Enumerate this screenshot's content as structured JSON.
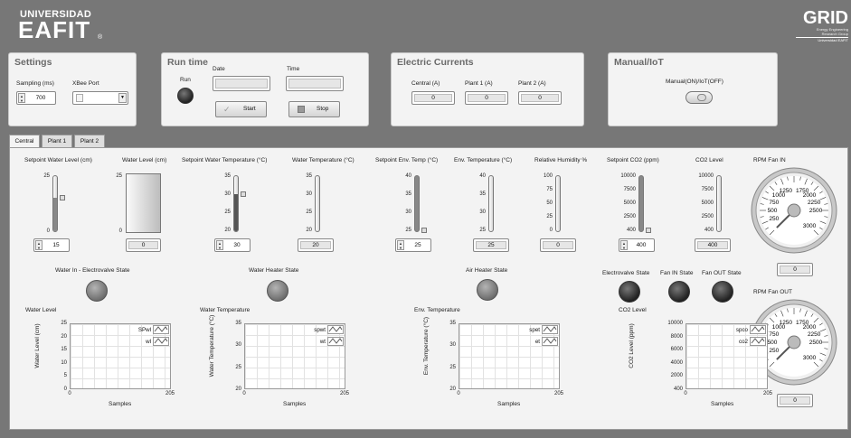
{
  "header": {
    "logo_line1": "UNIVERSIDAD",
    "logo_line2": "EAFIT",
    "logo_mark": "®",
    "grid_logo": "GRID",
    "grid_sub1": "Energy Engineering",
    "grid_sub2": "Research Group",
    "grid_sub3": "Universidad EAFIT"
  },
  "settings": {
    "title": "Settings",
    "sampling_label": "Sampling (ms)",
    "sampling_value": "700",
    "xbee_label": "XBee Port",
    "xbee_value": ""
  },
  "runtime": {
    "title": "Run time",
    "run_label": "Run",
    "date_label": "Date",
    "time_label": "Time",
    "date_value": "",
    "time_value": "",
    "start_label": "Start",
    "stop_label": "Stop"
  },
  "currents": {
    "title": "Electric Currents",
    "central_label": "Central (A)",
    "plant1_label": "Plant 1 (A)",
    "plant2_label": "Plant 2 (A)",
    "central_value": "0",
    "plant1_value": "0",
    "plant2_value": "0"
  },
  "manual": {
    "title": "Manual/IoT",
    "switch_label": "Manual(ON)/IoT(OFF)"
  },
  "tabs": [
    "Central",
    "Plant 1",
    "Plant 2"
  ],
  "central": {
    "sp_wl": {
      "label": "Setpoint Water Level (cm)",
      "ticks": [
        "25",
        "0"
      ],
      "value": "15",
      "level": 0.6
    },
    "wl": {
      "label": "Water Level (cm)",
      "ticks": [
        "25",
        "0"
      ],
      "value": "0"
    },
    "sp_wt": {
      "label": "Setpoint Water Temperature (°C)",
      "ticks": [
        "35",
        "30",
        "25",
        "20"
      ],
      "value": "30",
      "level": 0.67
    },
    "wt": {
      "label": "Water Temperature (°C)",
      "ticks": [
        "35",
        "30",
        "25",
        "20"
      ],
      "value": "20"
    },
    "sp_et": {
      "label": "Setpoint Env. Temp (°C)",
      "ticks": [
        "40",
        "35",
        "30",
        "25"
      ],
      "value": "25",
      "level": 0
    },
    "et": {
      "label": "Env. Temperature (°C)",
      "ticks": [
        "40",
        "35",
        "30",
        "25"
      ],
      "value": "25"
    },
    "rh": {
      "label": "Relative Humidity %",
      "ticks": [
        "100",
        "75",
        "50",
        "25",
        "0"
      ],
      "value": "0"
    },
    "sp_co2": {
      "label": "Setpoint CO2 (ppm)",
      "ticks": [
        "10000",
        "7500",
        "5000",
        "2500",
        "400"
      ],
      "value": "400",
      "level": 0
    },
    "co2": {
      "label": "CO2 Level",
      "ticks": [
        "10000",
        "7500",
        "5000",
        "2500",
        "400"
      ],
      "value": "400"
    },
    "fan_in": {
      "label": "RPM Fan IN",
      "value": "0",
      "ticks": [
        "250",
        "500",
        "750",
        "1000",
        "1250",
        "1750",
        "2000",
        "2250",
        "2500",
        "3000"
      ],
      "rpm": 0
    },
    "fan_out": {
      "label": "RPM Fan OUT",
      "value": "0",
      "ticks": [
        "250",
        "500",
        "750",
        "1000",
        "1250",
        "1750",
        "2000",
        "2250",
        "2500",
        "3000"
      ],
      "rpm": 0
    },
    "leds": {
      "water_in": "Water In - Electrovalve State",
      "heater": "Water Heater State",
      "air_heater": "Air Heater State",
      "electrovalve": "Electrovalve State",
      "fan_in": "Fan IN State",
      "fan_out": "Fan OUT State"
    },
    "charts": [
      {
        "title": "Water Level",
        "ylabel": "Water Level (cm)",
        "xlabel": "Samples",
        "yticks": [
          "25",
          "20",
          "15",
          "10",
          "5",
          "0"
        ],
        "xticks": [
          "0",
          "205"
        ],
        "legend": [
          "SPwl",
          "wl"
        ]
      },
      {
        "title": "Water Temperature",
        "ylabel": "Water Temperature (°C)",
        "xlabel": "Samples",
        "yticks": [
          "35",
          "30",
          "25",
          "20"
        ],
        "xticks": [
          "0",
          "205"
        ],
        "legend": [
          "spwt",
          "wt"
        ]
      },
      {
        "title": "Env. Temperature",
        "ylabel": "Env. Temperature (°C)",
        "xlabel": "Samples",
        "yticks": [
          "35",
          "30",
          "25",
          "20"
        ],
        "xticks": [
          "0",
          "205"
        ],
        "legend": [
          "spet",
          "et"
        ]
      },
      {
        "title": "CO2 Level",
        "ylabel": "CO2 Level (ppm)",
        "xlabel": "Samples",
        "yticks": [
          "10000",
          "8000",
          "6000",
          "4000",
          "2000",
          "400"
        ],
        "xticks": [
          "0",
          "205"
        ],
        "legend": [
          "spco",
          "co2"
        ]
      }
    ]
  },
  "colors": {
    "background": "#777777",
    "panel": "#f3f3f3",
    "led_off": "#8a8a8a",
    "led_dark": "#1a1a1a"
  }
}
